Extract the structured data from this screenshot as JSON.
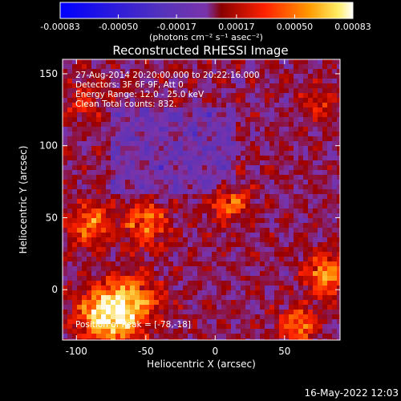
{
  "colorbar": {
    "ticks": [
      "-0.00083",
      "-0.00050",
      "-0.00017",
      "0.00017",
      "0.00050",
      "0.00083"
    ],
    "tick_values": [
      -0.00083,
      -0.0005,
      -0.00017,
      0.00017,
      0.0005,
      0.00083
    ],
    "range": [
      -0.00083,
      0.00083
    ],
    "unit_label": "(photons cm⁻² s⁻¹ asec⁻²)"
  },
  "chart_data": {
    "type": "heatmap",
    "title": "Reconstructed RHESSI Image",
    "xlabel": "Heliocentric X (arcsec)",
    "ylabel": "Heliocentric Y (arcsec)",
    "xlim": [
      -110,
      90
    ],
    "ylim": [
      -35,
      160
    ],
    "x_ticks": [
      -100,
      -50,
      0,
      50
    ],
    "x_tick_labels": [
      "-100",
      "-50",
      "0",
      "50"
    ],
    "y_ticks": [
      0,
      50,
      100,
      150
    ],
    "y_tick_labels": [
      "0",
      "50",
      "100",
      "150"
    ],
    "colormap": [
      "#0000ff",
      "#5533bb",
      "#7a33aa",
      "#990000",
      "#ff2200",
      "#ff8800",
      "#ffdd55",
      "#ffffff"
    ],
    "peak": [
      -78,
      -18
    ],
    "info_lines": [
      "27-Aug-2014 20:20:00.000 to 20:22:16.000",
      "Detectors: 3F 6F 9F, Att 0",
      "Energy Range: 12.0 - 25.0 keV",
      "Clean    Total counts: 832."
    ],
    "peak_label": "Position of Peak = [-78,-18]"
  },
  "footer": {
    "timestamp": "16-May-2022 12:03"
  }
}
